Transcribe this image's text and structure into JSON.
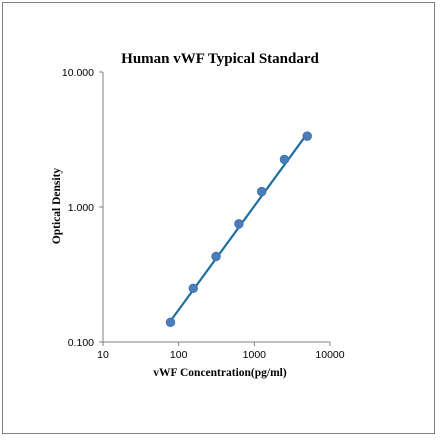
{
  "chart_data": {
    "type": "scatter",
    "title": "Human vWF Typical Standard",
    "xlabel": "vWF Concentration(pg/ml)",
    "ylabel": "Optical Density",
    "xscale": "log",
    "yscale": "log",
    "xlim": [
      10,
      10000
    ],
    "ylim": [
      0.1,
      10
    ],
    "x_ticks": [
      "10",
      "100",
      "1000",
      "10000"
    ],
    "y_ticks": [
      "0.100",
      "1.000",
      "10.000"
    ],
    "grid": false,
    "legend": "none",
    "series": [
      {
        "x": [
          78,
          156,
          312,
          625,
          1250,
          2500,
          5000
        ],
        "y": [
          0.14,
          0.25,
          0.43,
          0.75,
          1.3,
          2.25,
          3.35
        ]
      }
    ],
    "trendline": {
      "type": "power",
      "x_range": [
        78,
        5000
      ],
      "y_range": [
        0.143,
        3.5
      ]
    },
    "colors": {
      "marker": "#4a7ebb",
      "line": "#1f6f9f",
      "axis": "#808080"
    }
  }
}
